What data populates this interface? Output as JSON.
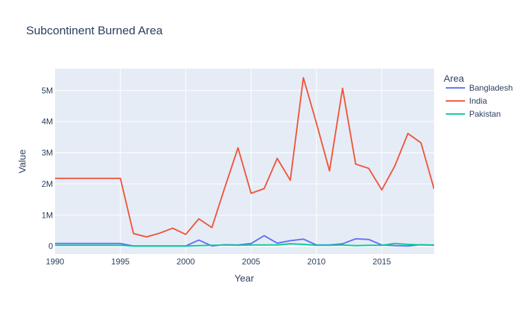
{
  "chart_data": {
    "type": "line",
    "title": "Subcontinent Burned Area",
    "xlabel": "Year",
    "ylabel": "Value",
    "legend_title": "Area",
    "legend_position": "right",
    "grid": true,
    "xlim": [
      1990,
      2019
    ],
    "ylim": [
      -250000,
      5700000
    ],
    "x_ticks": [
      1990,
      1995,
      2000,
      2005,
      2010,
      2015
    ],
    "x_tick_labels": [
      "1990",
      "1995",
      "2000",
      "2005",
      "2010",
      "2015"
    ],
    "y_ticks": [
      0,
      1000000,
      2000000,
      3000000,
      4000000,
      5000000
    ],
    "y_tick_labels": [
      "0",
      "1M",
      "2M",
      "3M",
      "4M",
      "5M"
    ],
    "x": [
      1990,
      1991,
      1992,
      1993,
      1994,
      1995,
      1996,
      1997,
      1998,
      1999,
      2000,
      2001,
      2002,
      2003,
      2004,
      2005,
      2006,
      2007,
      2008,
      2009,
      2010,
      2011,
      2012,
      2013,
      2014,
      2015,
      2016,
      2017,
      2018,
      2019
    ],
    "series": [
      {
        "name": "Bangladesh",
        "color": "#636efa",
        "values": [
          90000,
          90000,
          90000,
          90000,
          90000,
          90000,
          10000,
          10000,
          10000,
          10000,
          10000,
          200000,
          10000,
          50000,
          40000,
          90000,
          340000,
          100000,
          180000,
          230000,
          40000,
          40000,
          80000,
          240000,
          220000,
          40000,
          20000,
          10000,
          50000,
          30000
        ]
      },
      {
        "name": "India",
        "color": "#ef553b",
        "values": [
          2180000,
          2180000,
          2180000,
          2180000,
          2180000,
          2180000,
          410000,
          300000,
          420000,
          580000,
          380000,
          880000,
          600000,
          1900000,
          3160000,
          1700000,
          1850000,
          2820000,
          2120000,
          5410000,
          3950000,
          2420000,
          5070000,
          2640000,
          2500000,
          1810000,
          2580000,
          3620000,
          3320000,
          1840000
        ]
      },
      {
        "name": "Pakistan",
        "color": "#00cc96",
        "values": [
          30000,
          30000,
          30000,
          30000,
          30000,
          30000,
          10000,
          10000,
          10000,
          10000,
          10000,
          20000,
          30000,
          40000,
          30000,
          40000,
          40000,
          40000,
          80000,
          60000,
          30000,
          30000,
          40000,
          20000,
          30000,
          30000,
          90000,
          60000,
          40000,
          40000
        ]
      }
    ]
  }
}
